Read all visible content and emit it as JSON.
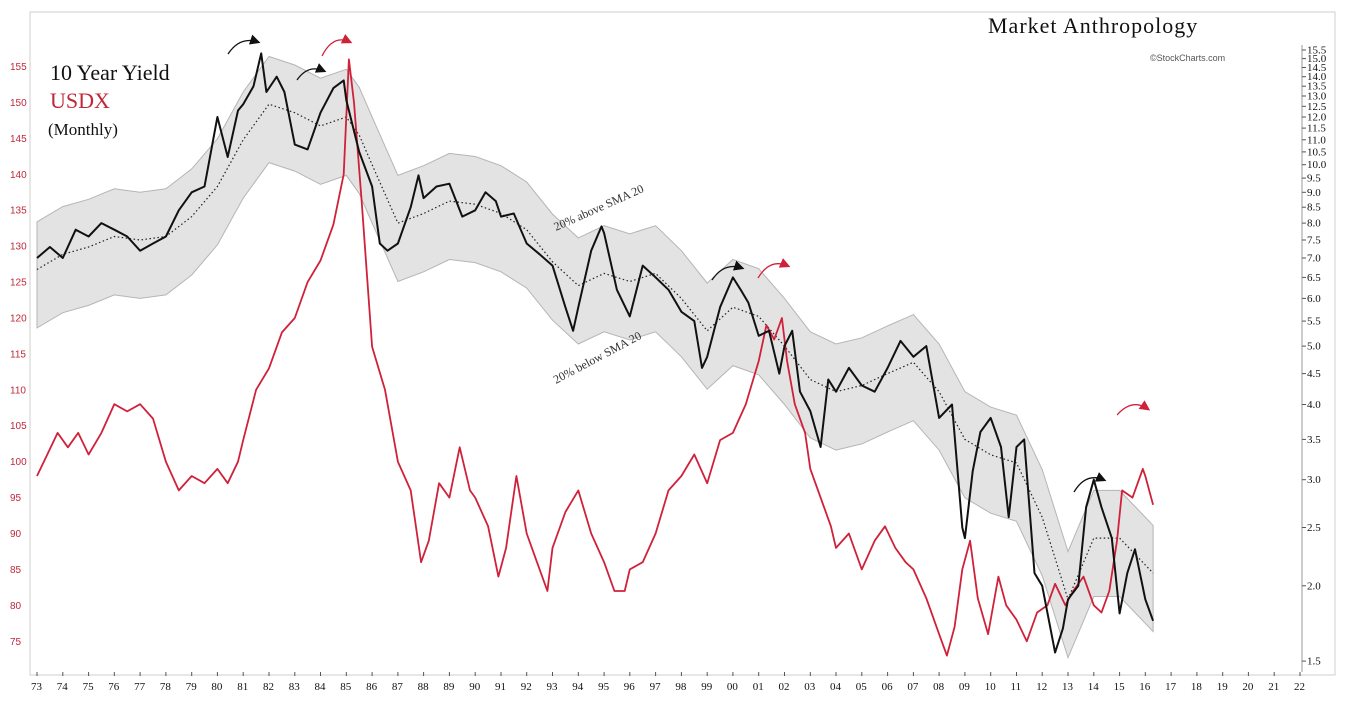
{
  "brand": {
    "name": "Market Anthropology",
    "credit": "©StockCharts.com"
  },
  "legend": {
    "title": "10 Year Yield",
    "series2": "USDX",
    "subtitle": "(Monthly)"
  },
  "annotations": {
    "upper_band": "20% above SMA 20",
    "lower_band": "20% below SMA 20"
  },
  "colors": {
    "yield": "#111111",
    "usdx": "#d0213a",
    "band_fill": "#e3e3e3",
    "band_edge": "#b5b5b5",
    "sma": "#222222",
    "arrow_black": "#111111",
    "arrow_red": "#d0213a"
  },
  "chart_data": {
    "type": "line",
    "frequency": "monthly",
    "x_ticks": [
      "73",
      "74",
      "75",
      "76",
      "77",
      "78",
      "79",
      "80",
      "81",
      "82",
      "83",
      "84",
      "85",
      "86",
      "87",
      "88",
      "89",
      "90",
      "91",
      "92",
      "93",
      "94",
      "95",
      "96",
      "97",
      "98",
      "99",
      "00",
      "01",
      "02",
      "03",
      "04",
      "05",
      "06",
      "07",
      "08",
      "09",
      "10",
      "11",
      "12",
      "13",
      "14",
      "15",
      "16",
      "17",
      "18",
      "19",
      "20",
      "21",
      "22"
    ],
    "x_range": [
      1973.0,
      2022.0
    ],
    "left_axis": {
      "series": "USDX",
      "scale": "linear",
      "ylim": [
        71,
        158
      ],
      "ticks": [
        75,
        80,
        85,
        90,
        95,
        100,
        105,
        110,
        115,
        120,
        125,
        130,
        135,
        140,
        145,
        150,
        155
      ]
    },
    "right_axis": {
      "series": "10 Year Yield",
      "scale": "log",
      "ylim": [
        1.45,
        15.8
      ],
      "ticks": [
        1.5,
        2.0,
        2.5,
        3.0,
        3.5,
        4.0,
        4.5,
        5.0,
        5.5,
        6.0,
        6.5,
        7.0,
        7.5,
        8.0,
        8.5,
        9.0,
        9.5,
        10.0,
        10.5,
        11.0,
        11.5,
        12.0,
        12.5,
        13.0,
        13.5,
        14.0,
        14.5,
        15.0,
        15.5
      ]
    },
    "series": [
      {
        "name": "10 Year Yield",
        "axis": "right",
        "points": [
          [
            1973.0,
            7.0
          ],
          [
            1973.5,
            7.3
          ],
          [
            1974.0,
            7.0
          ],
          [
            1974.5,
            7.8
          ],
          [
            1975.0,
            7.6
          ],
          [
            1975.5,
            8.0
          ],
          [
            1976.0,
            7.8
          ],
          [
            1976.5,
            7.6
          ],
          [
            1977.0,
            7.2
          ],
          [
            1977.5,
            7.4
          ],
          [
            1978.0,
            7.6
          ],
          [
            1978.5,
            8.4
          ],
          [
            1979.0,
            9.0
          ],
          [
            1979.5,
            9.2
          ],
          [
            1980.0,
            12.0
          ],
          [
            1980.4,
            10.3
          ],
          [
            1980.8,
            12.3
          ],
          [
            1981.0,
            12.6
          ],
          [
            1981.4,
            13.5
          ],
          [
            1981.7,
            15.3
          ],
          [
            1981.9,
            13.2
          ],
          [
            1982.3,
            14.0
          ],
          [
            1982.6,
            13.2
          ],
          [
            1983.0,
            10.8
          ],
          [
            1983.5,
            10.6
          ],
          [
            1984.0,
            12.2
          ],
          [
            1984.5,
            13.4
          ],
          [
            1984.9,
            13.8
          ],
          [
            1985.0,
            12.8
          ],
          [
            1985.5,
            10.5
          ],
          [
            1986.0,
            9.2
          ],
          [
            1986.3,
            7.4
          ],
          [
            1986.6,
            7.2
          ],
          [
            1987.0,
            7.4
          ],
          [
            1987.5,
            8.5
          ],
          [
            1987.8,
            9.6
          ],
          [
            1988.0,
            8.8
          ],
          [
            1988.5,
            9.2
          ],
          [
            1989.0,
            9.3
          ],
          [
            1989.5,
            8.2
          ],
          [
            1990.0,
            8.4
          ],
          [
            1990.4,
            9.0
          ],
          [
            1990.8,
            8.7
          ],
          [
            1991.0,
            8.2
          ],
          [
            1991.5,
            8.3
          ],
          [
            1992.0,
            7.4
          ],
          [
            1992.5,
            7.1
          ],
          [
            1993.0,
            6.8
          ],
          [
            1993.5,
            5.8
          ],
          [
            1993.8,
            5.3
          ],
          [
            1994.0,
            5.8
          ],
          [
            1994.5,
            7.2
          ],
          [
            1994.9,
            7.9
          ],
          [
            1995.0,
            7.7
          ],
          [
            1995.5,
            6.2
          ],
          [
            1996.0,
            5.6
          ],
          [
            1996.5,
            6.8
          ],
          [
            1997.0,
            6.5
          ],
          [
            1997.5,
            6.2
          ],
          [
            1998.0,
            5.7
          ],
          [
            1998.5,
            5.5
          ],
          [
            1998.8,
            4.6
          ],
          [
            1999.0,
            4.8
          ],
          [
            1999.5,
            5.8
          ],
          [
            2000.0,
            6.5
          ],
          [
            2000.3,
            6.2
          ],
          [
            2000.6,
            5.9
          ],
          [
            2001.0,
            5.2
          ],
          [
            2001.4,
            5.3
          ],
          [
            2001.8,
            4.5
          ],
          [
            2002.0,
            5.0
          ],
          [
            2002.3,
            5.3
          ],
          [
            2002.6,
            4.2
          ],
          [
            2003.0,
            3.9
          ],
          [
            2003.4,
            3.4
          ],
          [
            2003.7,
            4.4
          ],
          [
            2004.0,
            4.2
          ],
          [
            2004.5,
            4.6
          ],
          [
            2005.0,
            4.3
          ],
          [
            2005.5,
            4.2
          ],
          [
            2006.0,
            4.6
          ],
          [
            2006.5,
            5.1
          ],
          [
            2007.0,
            4.8
          ],
          [
            2007.5,
            5.0
          ],
          [
            2008.0,
            3.8
          ],
          [
            2008.5,
            4.0
          ],
          [
            2008.9,
            2.5
          ],
          [
            2009.0,
            2.4
          ],
          [
            2009.3,
            3.1
          ],
          [
            2009.6,
            3.6
          ],
          [
            2010.0,
            3.8
          ],
          [
            2010.4,
            3.4
          ],
          [
            2010.7,
            2.6
          ],
          [
            2011.0,
            3.4
          ],
          [
            2011.3,
            3.5
          ],
          [
            2011.7,
            2.1
          ],
          [
            2012.0,
            2.0
          ],
          [
            2012.5,
            1.55
          ],
          [
            2012.8,
            1.7
          ],
          [
            2013.0,
            1.9
          ],
          [
            2013.4,
            2.0
          ],
          [
            2013.7,
            2.7
          ],
          [
            2014.0,
            3.0
          ],
          [
            2014.3,
            2.7
          ],
          [
            2014.7,
            2.4
          ],
          [
            2015.0,
            1.8
          ],
          [
            2015.3,
            2.1
          ],
          [
            2015.6,
            2.3
          ],
          [
            2016.0,
            1.9
          ],
          [
            2016.3,
            1.75
          ]
        ]
      },
      {
        "name": "USDX",
        "axis": "left",
        "points": [
          [
            1973.0,
            98
          ],
          [
            1973.4,
            101
          ],
          [
            1973.8,
            104
          ],
          [
            1974.2,
            102
          ],
          [
            1974.6,
            104
          ],
          [
            1975.0,
            101
          ],
          [
            1975.5,
            104
          ],
          [
            1976.0,
            108
          ],
          [
            1976.5,
            107
          ],
          [
            1977.0,
            108
          ],
          [
            1977.5,
            106
          ],
          [
            1978.0,
            100
          ],
          [
            1978.5,
            96
          ],
          [
            1979.0,
            98
          ],
          [
            1979.5,
            97
          ],
          [
            1980.0,
            99
          ],
          [
            1980.4,
            97
          ],
          [
            1980.8,
            100
          ],
          [
            1981.0,
            103
          ],
          [
            1981.5,
            110
          ],
          [
            1982.0,
            113
          ],
          [
            1982.5,
            118
          ],
          [
            1983.0,
            120
          ],
          [
            1983.5,
            125
          ],
          [
            1984.0,
            128
          ],
          [
            1984.5,
            133
          ],
          [
            1984.9,
            140
          ],
          [
            1985.1,
            156
          ],
          [
            1985.3,
            150
          ],
          [
            1985.6,
            136
          ],
          [
            1986.0,
            116
          ],
          [
            1986.5,
            110
          ],
          [
            1987.0,
            100
          ],
          [
            1987.5,
            96
          ],
          [
            1987.9,
            86
          ],
          [
            1988.2,
            89
          ],
          [
            1988.6,
            97
          ],
          [
            1989.0,
            95
          ],
          [
            1989.4,
            102
          ],
          [
            1989.8,
            96
          ],
          [
            1990.0,
            95
          ],
          [
            1990.5,
            91
          ],
          [
            1990.9,
            84
          ],
          [
            1991.2,
            88
          ],
          [
            1991.6,
            98
          ],
          [
            1992.0,
            90
          ],
          [
            1992.4,
            86
          ],
          [
            1992.8,
            82
          ],
          [
            1993.0,
            88
          ],
          [
            1993.5,
            93
          ],
          [
            1994.0,
            96
          ],
          [
            1994.5,
            90
          ],
          [
            1995.0,
            86
          ],
          [
            1995.4,
            82
          ],
          [
            1995.8,
            82
          ],
          [
            1996.0,
            85
          ],
          [
            1996.5,
            86
          ],
          [
            1997.0,
            90
          ],
          [
            1997.5,
            96
          ],
          [
            1998.0,
            98
          ],
          [
            1998.5,
            101
          ],
          [
            1999.0,
            97
          ],
          [
            1999.5,
            103
          ],
          [
            2000.0,
            104
          ],
          [
            2000.5,
            108
          ],
          [
            2001.0,
            114
          ],
          [
            2001.3,
            119
          ],
          [
            2001.6,
            117
          ],
          [
            2001.9,
            120
          ],
          [
            2002.1,
            114
          ],
          [
            2002.4,
            108
          ],
          [
            2002.8,
            104
          ],
          [
            2003.0,
            99
          ],
          [
            2003.4,
            95
          ],
          [
            2003.8,
            91
          ],
          [
            2004.0,
            88
          ],
          [
            2004.5,
            90
          ],
          [
            2005.0,
            85
          ],
          [
            2005.5,
            89
          ],
          [
            2005.9,
            91
          ],
          [
            2006.3,
            88
          ],
          [
            2006.7,
            86
          ],
          [
            2007.0,
            85
          ],
          [
            2007.5,
            81
          ],
          [
            2008.0,
            76
          ],
          [
            2008.3,
            73
          ],
          [
            2008.6,
            77
          ],
          [
            2008.9,
            85
          ],
          [
            2009.2,
            89
          ],
          [
            2009.5,
            81
          ],
          [
            2009.9,
            76
          ],
          [
            2010.3,
            84
          ],
          [
            2010.6,
            80
          ],
          [
            2011.0,
            78
          ],
          [
            2011.4,
            75
          ],
          [
            2011.8,
            79
          ],
          [
            2012.2,
            80
          ],
          [
            2012.5,
            83
          ],
          [
            2012.9,
            80
          ],
          [
            2013.2,
            82
          ],
          [
            2013.6,
            84
          ],
          [
            2014.0,
            80
          ],
          [
            2014.3,
            79
          ],
          [
            2014.6,
            82
          ],
          [
            2014.9,
            89
          ],
          [
            2015.1,
            96
          ],
          [
            2015.5,
            95
          ],
          [
            2015.9,
            99
          ],
          [
            2016.0,
            98
          ],
          [
            2016.3,
            94
          ]
        ]
      },
      {
        "name": "SMA 20",
        "axis": "right",
        "points": [
          [
            1973.0,
            6.7
          ],
          [
            1974.0,
            7.1
          ],
          [
            1975.0,
            7.3
          ],
          [
            1976.0,
            7.6
          ],
          [
            1977.0,
            7.5
          ],
          [
            1978.0,
            7.6
          ],
          [
            1979.0,
            8.2
          ],
          [
            1980.0,
            9.2
          ],
          [
            1981.0,
            11.0
          ],
          [
            1982.0,
            12.6
          ],
          [
            1983.0,
            12.2
          ],
          [
            1984.0,
            11.6
          ],
          [
            1985.0,
            12.0
          ],
          [
            1985.5,
            11.2
          ],
          [
            1986.0,
            10.0
          ],
          [
            1987.0,
            8.0
          ],
          [
            1988.0,
            8.3
          ],
          [
            1989.0,
            8.7
          ],
          [
            1990.0,
            8.6
          ],
          [
            1991.0,
            8.3
          ],
          [
            1992.0,
            7.8
          ],
          [
            1993.0,
            6.9
          ],
          [
            1994.0,
            6.3
          ],
          [
            1995.0,
            6.6
          ],
          [
            1996.0,
            6.4
          ],
          [
            1997.0,
            6.6
          ],
          [
            1998.0,
            6.0
          ],
          [
            1999.0,
            5.3
          ],
          [
            2000.0,
            5.8
          ],
          [
            2001.0,
            5.6
          ],
          [
            2002.0,
            5.0
          ],
          [
            2003.0,
            4.4
          ],
          [
            2004.0,
            4.2
          ],
          [
            2005.0,
            4.3
          ],
          [
            2006.0,
            4.5
          ],
          [
            2007.0,
            4.7
          ],
          [
            2008.0,
            4.2
          ],
          [
            2009.0,
            3.5
          ],
          [
            2010.0,
            3.3
          ],
          [
            2011.0,
            3.2
          ],
          [
            2012.0,
            2.6
          ],
          [
            2013.0,
            1.9
          ],
          [
            2014.0,
            2.4
          ],
          [
            2015.0,
            2.4
          ],
          [
            2016.3,
            2.1
          ]
        ]
      }
    ]
  }
}
